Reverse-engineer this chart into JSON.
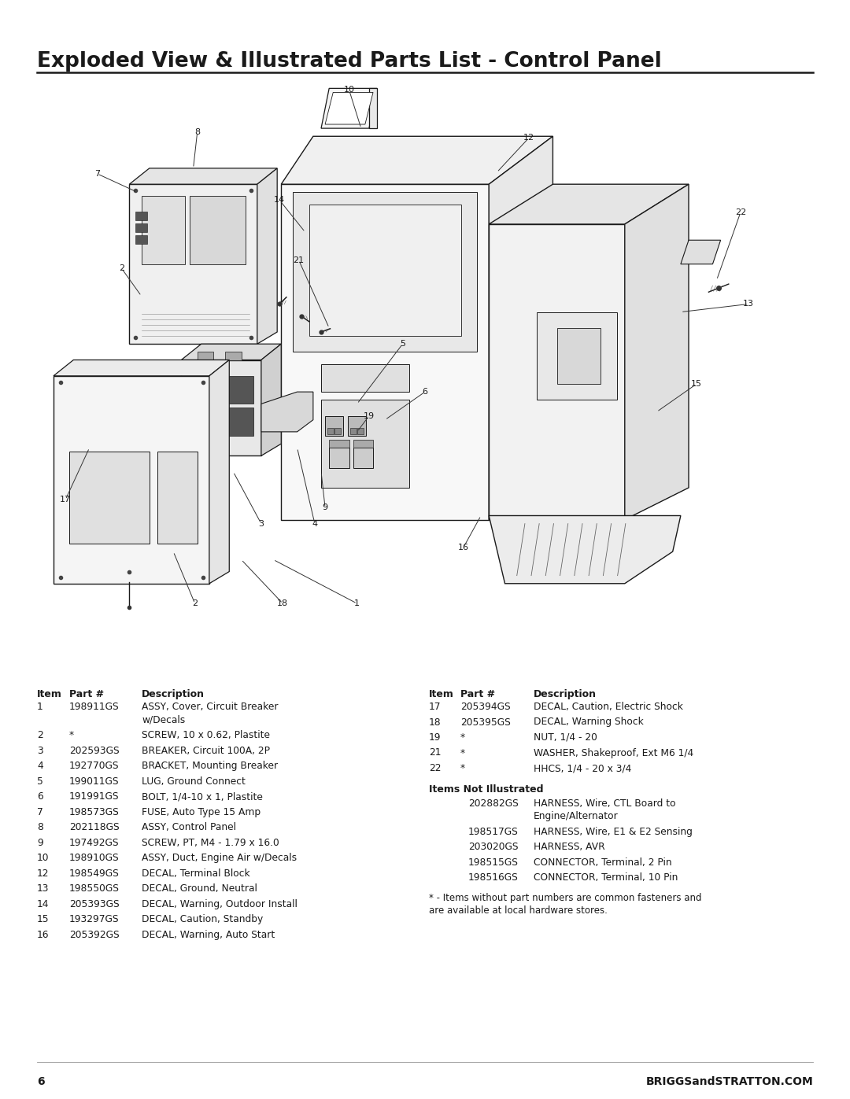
{
  "title": "Exploded View & Illustrated Parts List - Control Panel",
  "page_number": "6",
  "website": "BRIGGSandSTRATTON.COM",
  "footnote_line1": "* - Items without part numbers are common fasteners and",
  "footnote_line2": "are available at local hardware stores.",
  "left_items": [
    [
      "1",
      "198911GS",
      "ASSY, Cover, Circuit Breaker",
      "w/Decals"
    ],
    [
      "2",
      "*",
      "SCREW, 10 x 0.62, Plastite",
      ""
    ],
    [
      "3",
      "202593GS",
      "BREAKER, Circuit 100A, 2P",
      ""
    ],
    [
      "4",
      "192770GS",
      "BRACKET, Mounting Breaker",
      ""
    ],
    [
      "5",
      "199011GS",
      "LUG, Ground Connect",
      ""
    ],
    [
      "6",
      "191991GS",
      "BOLT, 1/4-10 x 1, Plastite",
      ""
    ],
    [
      "7",
      "198573GS",
      "FUSE, Auto Type 15 Amp",
      ""
    ],
    [
      "8",
      "202118GS",
      "ASSY, Control Panel",
      ""
    ],
    [
      "9",
      "197492GS",
      "SCREW, PT, M4 - 1.79 x 16.0",
      ""
    ],
    [
      "10",
      "198910GS",
      "ASSY, Duct, Engine Air w/Decals",
      ""
    ],
    [
      "12",
      "198549GS",
      "DECAL, Terminal Block",
      ""
    ],
    [
      "13",
      "198550GS",
      "DECAL, Ground, Neutral",
      ""
    ],
    [
      "14",
      "205393GS",
      "DECAL, Warning, Outdoor Install",
      ""
    ],
    [
      "15",
      "193297GS",
      "DECAL, Caution, Standby",
      ""
    ],
    [
      "16",
      "205392GS",
      "DECAL, Warning, Auto Start",
      ""
    ]
  ],
  "right_items": [
    [
      "17",
      "205394GS",
      "DECAL, Caution, Electric Shock"
    ],
    [
      "18",
      "205395GS",
      "DECAL, Warning Shock"
    ],
    [
      "19",
      "*",
      "NUT, 1/4 - 20"
    ],
    [
      "21",
      "*",
      "WASHER, Shakeproof, Ext M6 1/4"
    ],
    [
      "22",
      "*",
      "HHCS, 1/4 - 20 x 3/4"
    ]
  ],
  "not_illustrated_header": "Items Not Illustrated",
  "not_illustrated_items": [
    [
      "202882GS",
      "HARNESS, Wire, CTL Board to",
      "Engine/Alternator"
    ],
    [
      "198517GS",
      "HARNESS, Wire, E1 & E2 Sensing",
      ""
    ],
    [
      "203020GS",
      "HARNESS, AVR",
      ""
    ],
    [
      "198515GS",
      "CONNECTOR, Terminal, 2 Pin",
      ""
    ],
    [
      "198516GS",
      "CONNECTOR, Terminal, 10 Pin",
      ""
    ]
  ],
  "bg_color": "#ffffff",
  "title_fontsize": 19,
  "table_header_fontsize": 9,
  "table_body_fontsize": 8.8
}
